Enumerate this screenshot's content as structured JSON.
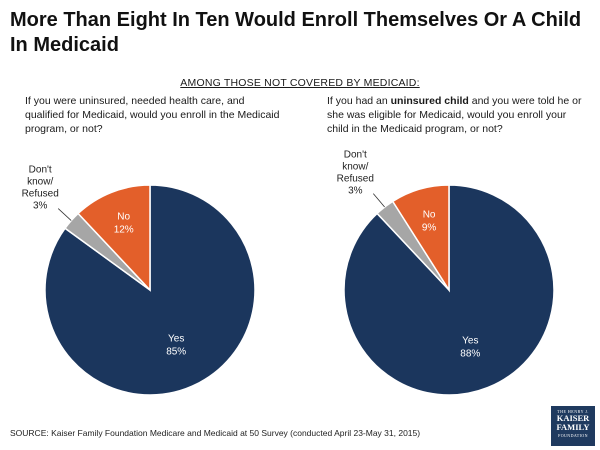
{
  "title": "More Than Eight In Ten Would Enroll Themselves Or A Child In Medicaid",
  "subhead": "AMONG THOSE NOT COVERED BY MEDICAID:",
  "question_left": "If you were uninsured, needed health care, and qualified for Medicaid, would you enroll in the Medicaid program, or not?",
  "question_right": {
    "prefix": "If you had an",
    "bold": "uninsured child",
    "suffix": "and you were told he or she was eligible for Medicaid, would you enroll your child in the Medicaid program, or not?"
  },
  "chart_data": [
    {
      "type": "pie",
      "title": "If you were uninsured, needed health care, and qualified for Medicaid, would you enroll in the Medicaid program, or not?",
      "slices": [
        {
          "label": "Yes",
          "value": 85,
          "display": "85%",
          "color": "#1b365d"
        },
        {
          "label": "Don't know/ Refused",
          "value": 3,
          "display": "3%",
          "color": "#a6a6a6"
        },
        {
          "label": "No",
          "value": 12,
          "display": "12%",
          "color": "#e35f2a"
        }
      ]
    },
    {
      "type": "pie",
      "title": "If you had an uninsured child and you were told he or she was eligible for Medicaid, would you enroll your child in the Medicaid program, or not?",
      "slices": [
        {
          "label": "Yes",
          "value": 88,
          "display": "88%",
          "color": "#1b365d"
        },
        {
          "label": "Don't know/ Refused",
          "value": 3,
          "display": "3%",
          "color": "#a6a6a6"
        },
        {
          "label": "No",
          "value": 9,
          "display": "9%",
          "color": "#e35f2a"
        }
      ]
    }
  ],
  "dk_label_lines": [
    "Don't",
    "know/",
    "Refused"
  ],
  "source": "SOURCE: Kaiser Family Foundation Medicare and Medicaid at 50 Survey (conducted April 23-May 31, 2015)",
  "logo": {
    "line1": "THE HENRY J.",
    "line2": "KAISER",
    "line3": "FAMILY",
    "line4": "FOUNDATION"
  }
}
